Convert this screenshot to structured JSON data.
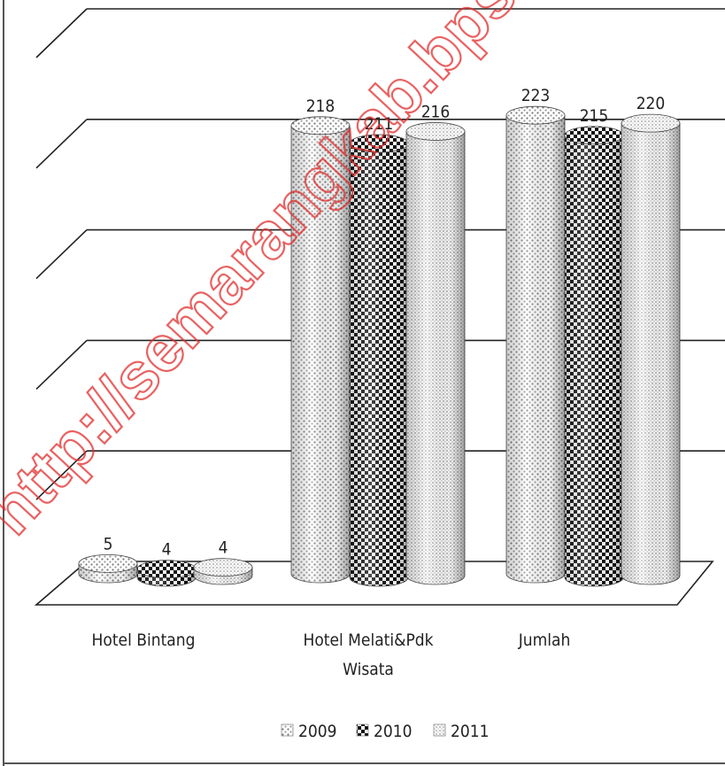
{
  "chart_data": {
    "type": "bar",
    "bar_shape": "cylinder-3d",
    "categories": [
      "Hotel Bintang",
      "Hotel Melati&Pdk Wisata",
      "Jumlah"
    ],
    "category_lines": [
      [
        "Hotel Bintang"
      ],
      [
        "Hotel Melati&Pdk",
        "Wisata"
      ],
      [
        "Jumlah"
      ]
    ],
    "series": [
      {
        "name": "2009",
        "values": [
          5,
          218,
          223
        ],
        "pattern": "dots",
        "color": "#8a8a8a"
      },
      {
        "name": "2010",
        "values": [
          4,
          211,
          215
        ],
        "pattern": "checker",
        "color": "#111111"
      },
      {
        "name": "2011",
        "values": [
          4,
          216,
          220
        ],
        "pattern": "fine-dots",
        "color": "#a0a0a0"
      }
    ],
    "ylim": [
      0,
      250
    ],
    "y_tick_step": 50,
    "grid": true,
    "legend_position": "bottom",
    "title": "",
    "xlabel": "",
    "ylabel": ""
  },
  "watermark": {
    "text": "http://semarangkab.bps.go.id",
    "color": "#e32d2d"
  }
}
